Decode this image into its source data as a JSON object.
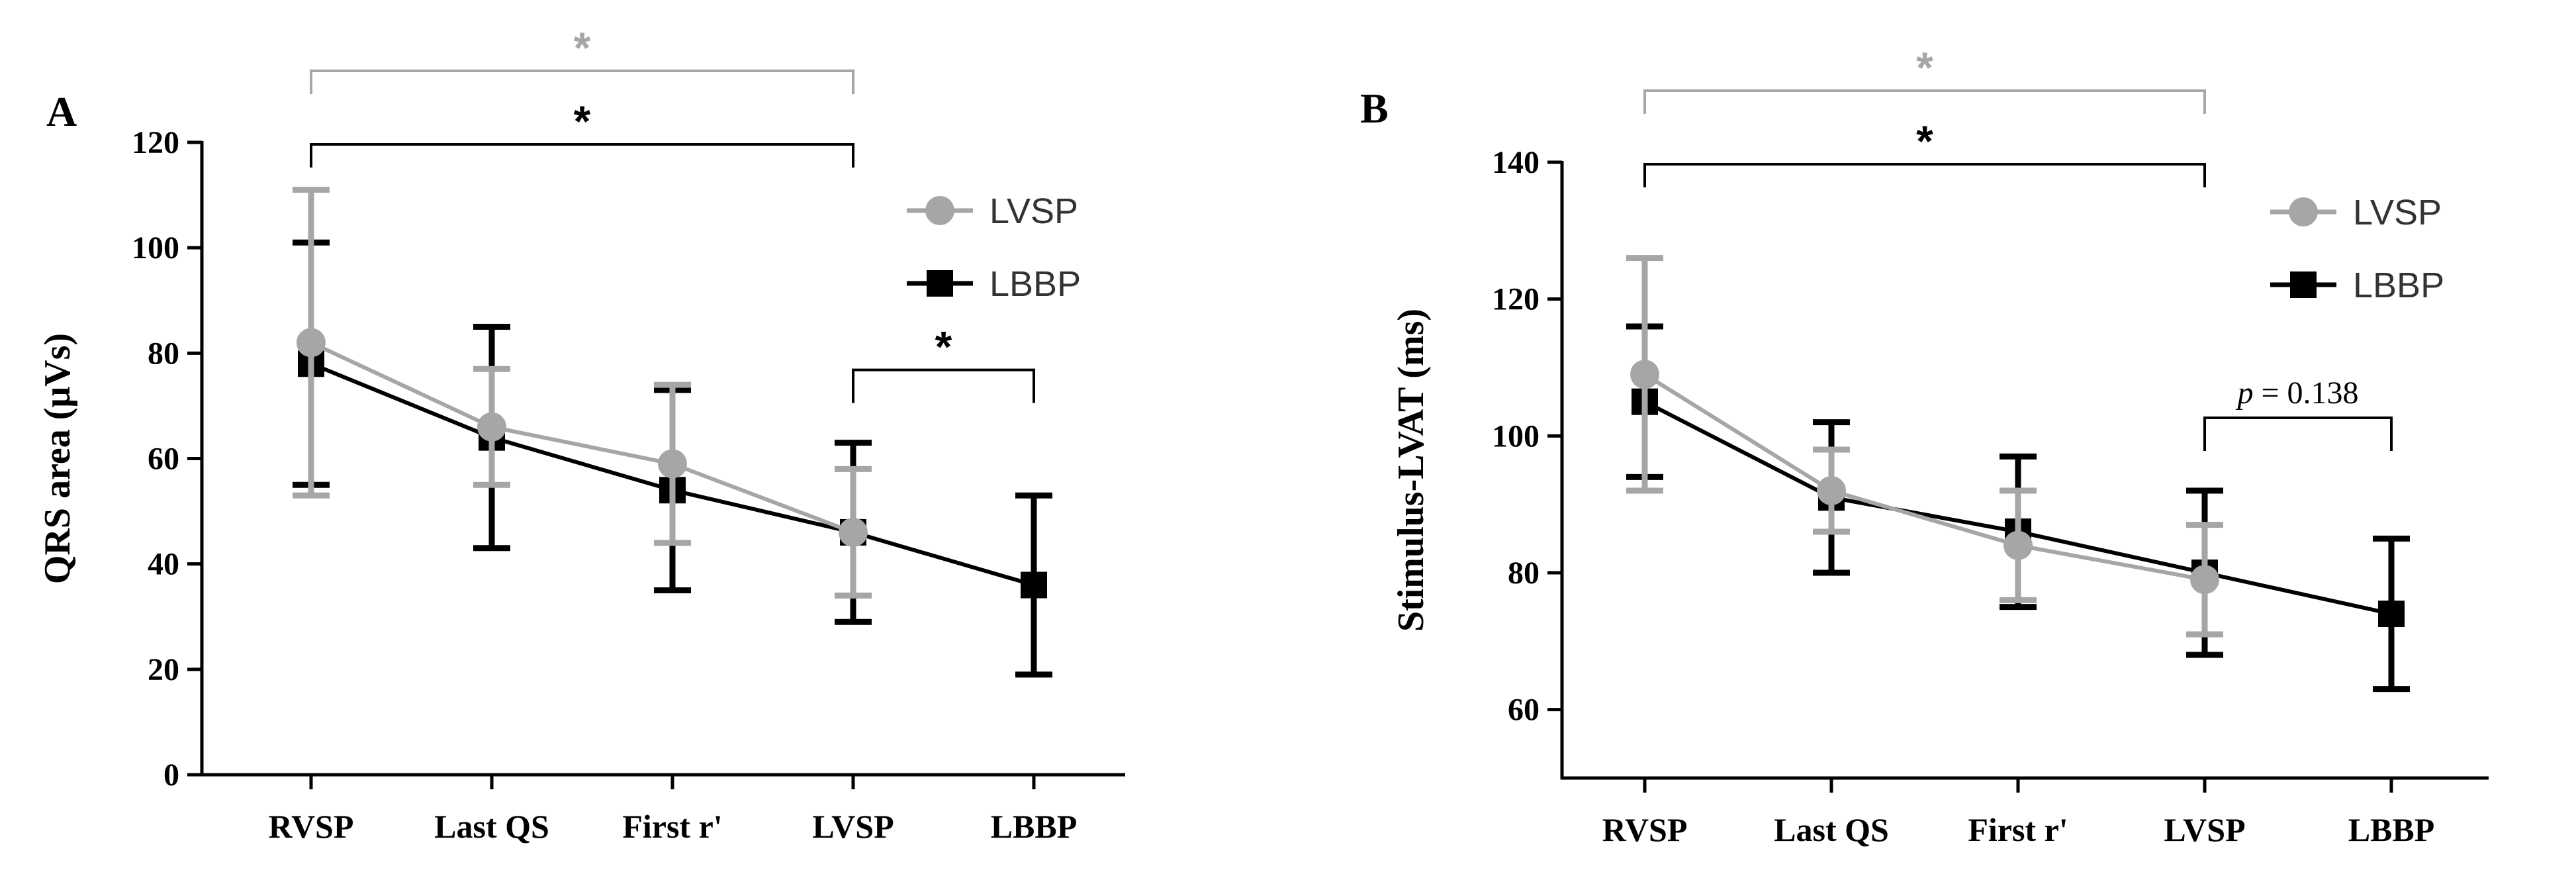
{
  "colors": {
    "lvsp": "#a6a6a6",
    "lbbp": "#000000"
  },
  "chart_data": [
    {
      "type": "line",
      "panel_label": "A",
      "ylabel": "QRS area (μVs)",
      "xlabel": "",
      "categories": [
        "RVSP",
        "Last QS",
        "First r'",
        "LVSP",
        "LBBP"
      ],
      "ylim": [
        0,
        120
      ],
      "yticks": [
        0,
        20,
        40,
        60,
        80,
        100,
        120
      ],
      "series": [
        {
          "name": "LVSP",
          "values": [
            82,
            66,
            59,
            46,
            null
          ],
          "lower": [
            53,
            55,
            44,
            34,
            null
          ],
          "upper": [
            111,
            77,
            74,
            58,
            null
          ]
        },
        {
          "name": "LBBP",
          "values": [
            78,
            64,
            54,
            46,
            36
          ],
          "lower": [
            55,
            43,
            35,
            29,
            19
          ],
          "upper": [
            101,
            85,
            73,
            63,
            53
          ]
        }
      ],
      "annotations": [
        {
          "text": "*",
          "from": 0,
          "to": 3,
          "level": 2,
          "color": "lvsp"
        },
        {
          "text": "*",
          "from": 0,
          "to": 3,
          "level": 1,
          "color": "lbbp"
        },
        {
          "text": "*",
          "from": 3,
          "to": 4,
          "level": 0,
          "color": "lbbp"
        }
      ],
      "legend": [
        "LVSP",
        "LBBP"
      ]
    },
    {
      "type": "line",
      "panel_label": "B",
      "ylabel": "Stimulus-LVAT (ms)",
      "xlabel": "",
      "categories": [
        "RVSP",
        "Last QS",
        "First r'",
        "LVSP",
        "LBBP"
      ],
      "ylim": [
        50,
        140
      ],
      "yticks": [
        60,
        80,
        100,
        120,
        140
      ],
      "series": [
        {
          "name": "LVSP",
          "values": [
            109,
            92,
            84,
            79,
            null
          ],
          "lower": [
            92,
            86,
            76,
            71,
            null
          ],
          "upper": [
            126,
            98,
            92,
            87,
            null
          ]
        },
        {
          "name": "LBBP",
          "values": [
            105,
            91,
            86,
            80,
            74
          ],
          "lower": [
            94,
            80,
            75,
            68,
            63
          ],
          "upper": [
            116,
            102,
            97,
            92,
            85
          ]
        }
      ],
      "annotations": [
        {
          "text": "*",
          "from": 0,
          "to": 3,
          "level": 2,
          "color": "lvsp"
        },
        {
          "text": "*",
          "from": 0,
          "to": 3,
          "level": 1,
          "color": "lbbp"
        },
        {
          "text": "= 0.138",
          "italic_prefix": "p",
          "from": 3,
          "to": 4,
          "level": 0,
          "color": "lbbp"
        }
      ],
      "legend": [
        "LVSP",
        "LBBP"
      ]
    }
  ]
}
